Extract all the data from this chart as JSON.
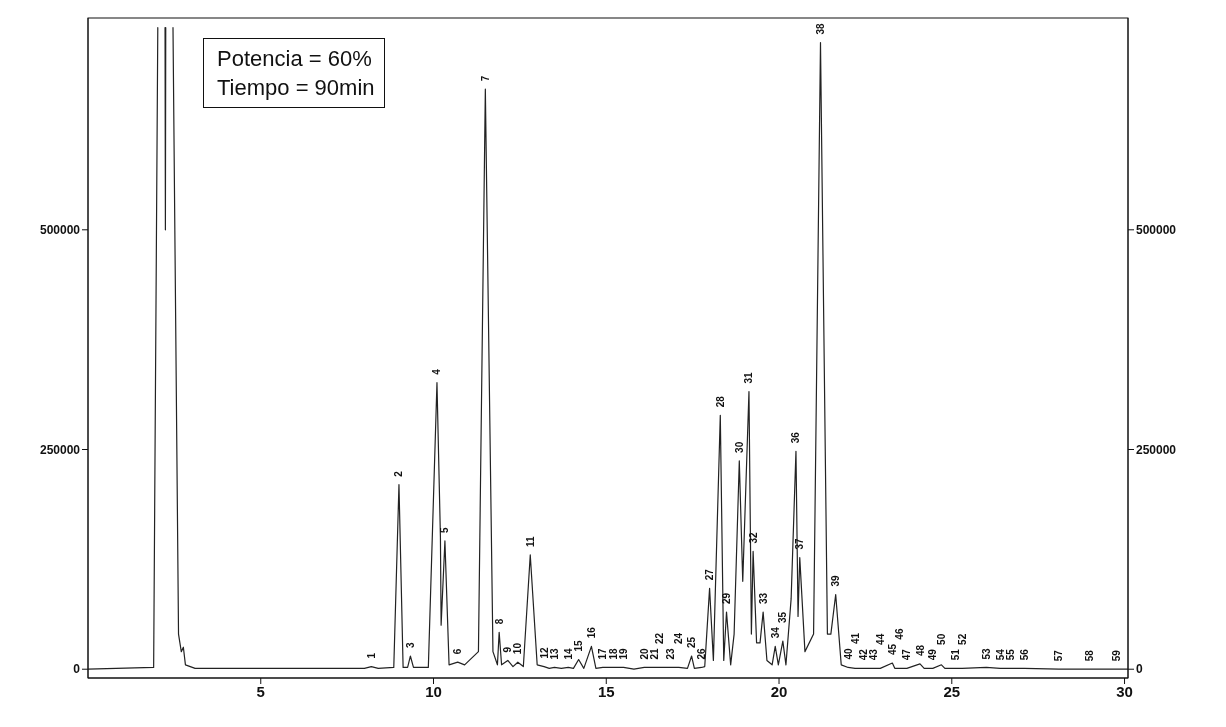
{
  "chart_data": {
    "type": "line",
    "x": [
      0,
      1.9,
      2.02,
      2.03,
      2.23,
      2.24,
      2.25,
      2.26,
      2.46,
      2.62,
      2.7,
      2.76,
      2.82,
      3.1,
      8.0,
      8.2,
      8.4,
      8.85,
      9.0,
      9.12,
      9.25,
      9.33,
      9.42,
      9.85,
      10.1,
      10.2,
      10.22,
      10.33,
      10.45,
      10.7,
      10.9,
      11.3,
      11.5,
      11.72,
      11.85,
      11.9,
      11.97,
      12.15,
      12.3,
      12.44,
      12.6,
      12.8,
      13.0,
      13.2,
      13.35,
      13.5,
      13.7,
      13.9,
      14.05,
      14.2,
      14.35,
      14.57,
      14.7,
      14.9,
      15.2,
      15.5,
      15.8,
      16.1,
      16.4,
      16.55,
      16.85,
      17.1,
      17.35,
      17.47,
      17.55,
      17.76,
      17.85,
      17.99,
      18.1,
      18.3,
      18.4,
      18.48,
      18.6,
      18.7,
      18.85,
      18.95,
      19.13,
      19.2,
      19.25,
      19.35,
      19.45,
      19.54,
      19.65,
      19.8,
      19.89,
      19.98,
      20.11,
      20.2,
      20.35,
      20.49,
      20.55,
      20.6,
      20.75,
      21.0,
      21.2,
      21.4,
      21.5,
      21.64,
      21.8,
      22.0,
      22.2,
      22.45,
      22.73,
      22.93,
      23.28,
      23.35,
      23.5,
      23.7,
      24.08,
      24.2,
      24.45,
      24.7,
      24.8,
      25.1,
      25.3,
      26.0,
      26.4,
      26.7,
      27.1,
      28.1,
      29.0,
      29.77,
      30.1
    ],
    "series": [
      {
        "color": "#222222",
        "values": [
          0,
          2000,
          730000,
          null,
          730000,
          500000,
          730000,
          null,
          730000,
          40000,
          20000,
          25000,
          5000,
          1000,
          1000,
          3000,
          1000,
          2000,
          210000,
          2000,
          2000,
          15000,
          2000,
          2000,
          326000,
          150000,
          50000,
          146000,
          5000,
          8000,
          5000,
          20000,
          660000,
          20000,
          5000,
          42000,
          5000,
          10000,
          3000,
          8000,
          3000,
          130000,
          5000,
          3000,
          1000,
          2000,
          1000,
          2000,
          1000,
          11000,
          1000,
          26000,
          1000,
          2000,
          2000,
          2000,
          0,
          2000,
          2000,
          2000,
          2000,
          2000,
          1000,
          15000,
          1000,
          2000,
          3000,
          92000,
          10000,
          289000,
          10000,
          65000,
          5000,
          40000,
          237000,
          100000,
          316000,
          40000,
          134000,
          30000,
          30000,
          65000,
          10000,
          5000,
          26000,
          5000,
          32000,
          5000,
          80000,
          248000,
          60000,
          127000,
          20000,
          40000,
          713000,
          40000,
          40000,
          85000,
          5000,
          2000,
          1000,
          1000,
          1000,
          1000,
          7000,
          1000,
          1000,
          1000,
          6000,
          1000,
          1000,
          5000,
          1000,
          1000,
          1000,
          2000,
          1000,
          1000,
          1000,
          0,
          0,
          0,
          0
        ]
      }
    ],
    "xlim": [
      0,
      30.1
    ],
    "xticks": [
      5,
      10,
      15,
      20,
      25,
      30
    ],
    "ylim": [
      -10000,
      741000
    ],
    "yticks": [
      0,
      250000,
      500000
    ],
    "y2lim": [
      -10000,
      741000
    ],
    "y2ticks": [
      0,
      250000,
      500000
    ],
    "marker": "none",
    "line_style": "solid",
    "annotations": [
      "Potencia = 60%",
      "Tiempo = 90min",
      {
        "text": "1",
        "x": 8.2,
        "y": 3000
      },
      {
        "text": "2",
        "x": 9.0,
        "y": 210000
      },
      {
        "text": "3",
        "x": 9.33,
        "y": 15000
      },
      {
        "text": "4",
        "x": 10.1,
        "y": 326000
      },
      {
        "text": "5",
        "x": 10.33,
        "y": 146000
      },
      {
        "text": "6",
        "x": 10.7,
        "y": 8000
      },
      {
        "text": "7",
        "x": 11.5,
        "y": 660000
      },
      {
        "text": "8",
        "x": 11.9,
        "y": 42000
      },
      {
        "text": "9",
        "x": 12.15,
        "y": 10000
      },
      {
        "text": "10",
        "x": 12.44,
        "y": 8000
      },
      {
        "text": "11",
        "x": 12.8,
        "y": 130000
      },
      {
        "text": "12",
        "x": 13.2,
        "y": 3000
      },
      {
        "text": "13",
        "x": 13.5,
        "y": 2000
      },
      {
        "text": "14",
        "x": 13.9,
        "y": 2000
      },
      {
        "text": "15",
        "x": 14.2,
        "y": 11000
      },
      {
        "text": "16",
        "x": 14.57,
        "y": 26000
      },
      {
        "text": "17",
        "x": 14.9,
        "y": 2000
      },
      {
        "text": "18",
        "x": 15.2,
        "y": 2000
      },
      {
        "text": "19",
        "x": 15.5,
        "y": 2000
      },
      {
        "text": "20",
        "x": 16.1,
        "y": 2000
      },
      {
        "text": "21",
        "x": 16.4,
        "y": 2000
      },
      {
        "text": "22",
        "x": 16.55,
        "y": 2000
      },
      {
        "text": "23",
        "x": 16.85,
        "y": 2000
      },
      {
        "text": "24",
        "x": 17.1,
        "y": 2000
      },
      {
        "text": "25",
        "x": 17.47,
        "y": 15000
      },
      {
        "text": "26",
        "x": 17.76,
        "y": 2000
      },
      {
        "text": "27",
        "x": 17.99,
        "y": 92000
      },
      {
        "text": "28",
        "x": 18.3,
        "y": 289000
      },
      {
        "text": "29",
        "x": 18.48,
        "y": 65000
      },
      {
        "text": "30",
        "x": 18.85,
        "y": 237000
      },
      {
        "text": "31",
        "x": 19.13,
        "y": 316000
      },
      {
        "text": "32",
        "x": 19.25,
        "y": 134000
      },
      {
        "text": "33",
        "x": 19.54,
        "y": 65000
      },
      {
        "text": "34",
        "x": 19.89,
        "y": 26000
      },
      {
        "text": "35",
        "x": 20.11,
        "y": 32000
      },
      {
        "text": "36",
        "x": 20.49,
        "y": 248000
      },
      {
        "text": "37",
        "x": 20.6,
        "y": 127000
      },
      {
        "text": "38",
        "x": 21.2,
        "y": 713000
      },
      {
        "text": "39",
        "x": 21.64,
        "y": 85000
      },
      {
        "text": "40",
        "x": 22.0,
        "y": 2000
      },
      {
        "text": "41",
        "x": 22.2,
        "y": 1000
      },
      {
        "text": "42",
        "x": 22.45,
        "y": 1000
      },
      {
        "text": "43",
        "x": 22.73,
        "y": 1000
      },
      {
        "text": "44",
        "x": 22.93,
        "y": 1000
      },
      {
        "text": "45",
        "x": 23.28,
        "y": 7000
      },
      {
        "text": "46",
        "x": 23.5,
        "y": 1000
      },
      {
        "text": "47",
        "x": 23.7,
        "y": 1000
      },
      {
        "text": "48",
        "x": 24.08,
        "y": 6000
      },
      {
        "text": "49",
        "x": 24.45,
        "y": 1000
      },
      {
        "text": "50",
        "x": 24.7,
        "y": 5000
      },
      {
        "text": "51",
        "x": 25.1,
        "y": 1000
      },
      {
        "text": "52",
        "x": 25.3,
        "y": 1000
      },
      {
        "text": "53",
        "x": 26.0,
        "y": 2000
      },
      {
        "text": "54",
        "x": 26.4,
        "y": 1000
      },
      {
        "text": "55",
        "x": 26.7,
        "y": 1000
      },
      {
        "text": "56",
        "x": 27.1,
        "y": 1000
      },
      {
        "text": "57",
        "x": 28.1,
        "y": 0
      },
      {
        "text": "58",
        "x": 29.0,
        "y": 0
      },
      {
        "text": "59",
        "x": 29.77,
        "y": 0
      }
    ]
  }
}
